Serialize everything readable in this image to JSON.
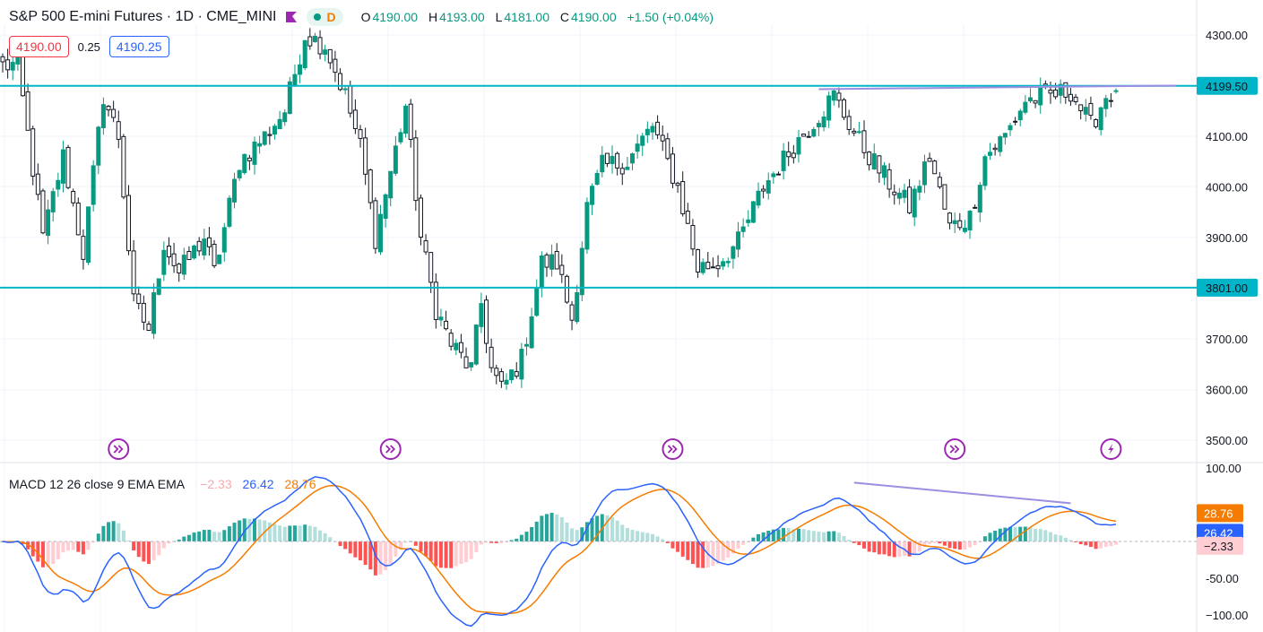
{
  "header": {
    "symbol": "S&P 500 E-mini Futures · 1D · CME_MINI",
    "interval_badge": "D",
    "ohlc": {
      "o_label": "O",
      "o": "4190.00",
      "h_label": "H",
      "h": "4193.00",
      "l_label": "L",
      "l": "4181.00",
      "c_label": "C",
      "c": "4190.00",
      "change": "+1.50 (+0.04%)"
    }
  },
  "trade": {
    "bid": "4190.00",
    "spread": "0.25",
    "ask": "4190.25"
  },
  "macd_legend": {
    "name": "MACD 12 26 close 9 EMA EMA",
    "hist": "−2.33",
    "macd": "26.42",
    "signal": "28.76"
  },
  "colors": {
    "up": "#089981",
    "down": "#131722",
    "hline": "#00b5c8",
    "trend": "#9c8ee0",
    "macd": "#2962ff",
    "signal": "#f57c00",
    "hist_up": "#26a69a",
    "hist_up_light": "#b2dfdb",
    "hist_down": "#ff5252",
    "hist_down_light": "#ffcdd2",
    "event": "#9c27b0"
  },
  "chart_data": {
    "type": "candlestick",
    "ylim": [
      3470,
      4330
    ],
    "y_ticks": [
      "4300.00",
      "4100.00",
      "4000.00",
      "3900.00",
      "3700.00",
      "3600.00",
      "3500.00"
    ],
    "horizontal_lines": [
      {
        "value": 4199.5,
        "label": "4199.50"
      },
      {
        "value": 3801,
        "label": "3801.00"
      }
    ],
    "trendline": {
      "from": [
        162,
        4193
      ],
      "to": [
        233,
        4200
      ]
    },
    "event_markers": [
      {
        "index": 23,
        "icon": "double-arrow-icon"
      },
      {
        "index": 77,
        "icon": "double-arrow-icon"
      },
      {
        "index": 133,
        "icon": "double-arrow-icon"
      },
      {
        "index": 189,
        "icon": "double-arrow-icon"
      },
      {
        "index": 220,
        "icon": "lightning-icon"
      }
    ],
    "n_candles": 222,
    "anchors": [
      [
        0,
        4240
      ],
      [
        3,
        4240
      ],
      [
        8,
        3900
      ],
      [
        12,
        4060
      ],
      [
        16,
        3870
      ],
      [
        20,
        4180
      ],
      [
        23,
        4100
      ],
      [
        26,
        3770
      ],
      [
        29,
        3720
      ],
      [
        32,
        3890
      ],
      [
        35,
        3830
      ],
      [
        40,
        3900
      ],
      [
        42,
        3830
      ],
      [
        47,
        4050
      ],
      [
        52,
        4100
      ],
      [
        56,
        4150
      ],
      [
        60,
        4300
      ],
      [
        64,
        4280
      ],
      [
        68,
        4180
      ],
      [
        71,
        4080
      ],
      [
        74,
        3900
      ],
      [
        80,
        4160
      ],
      [
        83,
        3900
      ],
      [
        86,
        3760
      ],
      [
        89,
        3690
      ],
      [
        93,
        3640
      ],
      [
        95,
        3770
      ],
      [
        97,
        3640
      ],
      [
        99,
        3600
      ],
      [
        103,
        3660
      ],
      [
        107,
        3850
      ],
      [
        110,
        3850
      ],
      [
        113,
        3740
      ],
      [
        116,
        3960
      ],
      [
        119,
        4040
      ],
      [
        124,
        4050
      ],
      [
        129,
        4120
      ],
      [
        134,
        4000
      ],
      [
        138,
        3840
      ],
      [
        142,
        3850
      ],
      [
        146,
        3890
      ],
      [
        151,
        4000
      ],
      [
        157,
        4080
      ],
      [
        165,
        4180
      ],
      [
        170,
        4090
      ],
      [
        175,
        4020
      ],
      [
        180,
        3960
      ],
      [
        184,
        4060
      ],
      [
        188,
        3920
      ],
      [
        192,
        3940
      ],
      [
        195,
        4060
      ],
      [
        199,
        4100
      ],
      [
        203,
        4170
      ],
      [
        208,
        4180
      ],
      [
        212,
        4190
      ],
      [
        216,
        4120
      ],
      [
        219,
        4180
      ],
      [
        221,
        4190
      ]
    ],
    "last": {
      "open": 4190.0,
      "high": 4193.0,
      "low": 4181.0,
      "close": 4190.0
    },
    "macd": {
      "ylim": [
        -112,
        105
      ],
      "y_ticks": [
        "100.00",
        "-50.00",
        "−100.00"
      ],
      "last": {
        "macd": 26.42,
        "signal": 28.76,
        "hist": -2.33
      },
      "divergence_line": {
        "from": [
          169,
          80
        ],
        "to": [
          212,
          52
        ]
      }
    }
  }
}
